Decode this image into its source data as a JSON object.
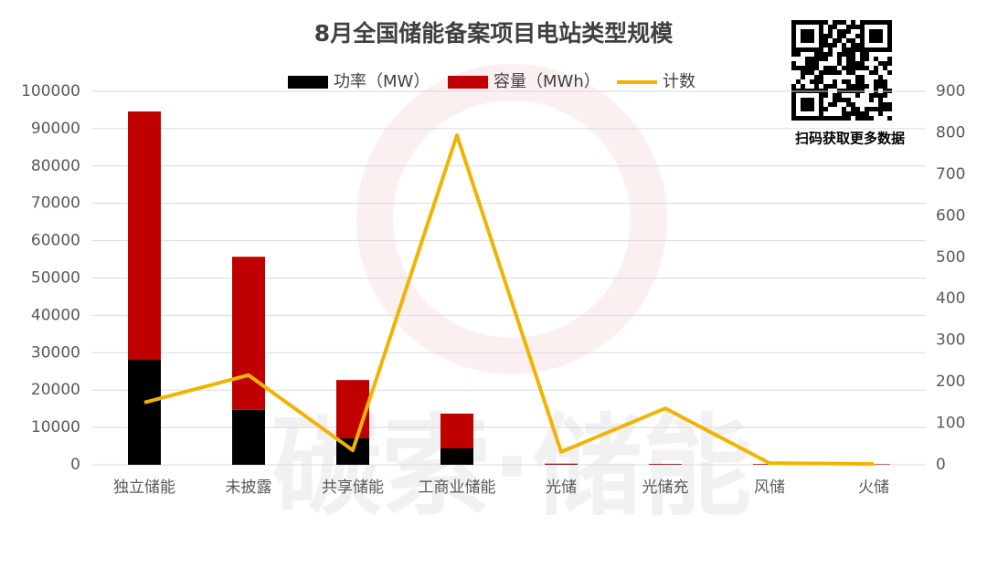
{
  "chart_data": {
    "type": "bar_line",
    "title": "8月全国储能备案项目电站类型规模",
    "categories": [
      "独立储能",
      "未披露",
      "共享储能",
      "工商业储能",
      "光储",
      "光储充",
      "风储",
      "火储"
    ],
    "series": [
      {
        "name": "功率（MW）",
        "color": "#000000",
        "type": "bar",
        "values": [
          28100,
          14700,
          7100,
          4400,
          100,
          80,
          60,
          50
        ]
      },
      {
        "name": "容量（MWh）",
        "color": "#c00000",
        "type": "bar",
        "values": [
          66500,
          41000,
          15600,
          9300,
          200,
          150,
          150,
          120
        ]
      },
      {
        "name": "计数",
        "color": "#f0b400",
        "type": "line",
        "axis": "y2",
        "values": [
          150,
          216,
          35,
          794,
          31,
          136,
          4,
          2
        ]
      }
    ],
    "ylim": [
      0,
      100000
    ],
    "yticks": [
      0,
      10000,
      20000,
      30000,
      40000,
      50000,
      60000,
      70000,
      80000,
      90000,
      100000
    ],
    "y2lim": [
      0,
      900
    ],
    "y2ticks": [
      0,
      100,
      200,
      300,
      400,
      500,
      600,
      700,
      800,
      900
    ],
    "grid": true,
    "legend": "top",
    "qr_caption": "扫码获取更多数据",
    "watermark": "碳索·储能"
  }
}
